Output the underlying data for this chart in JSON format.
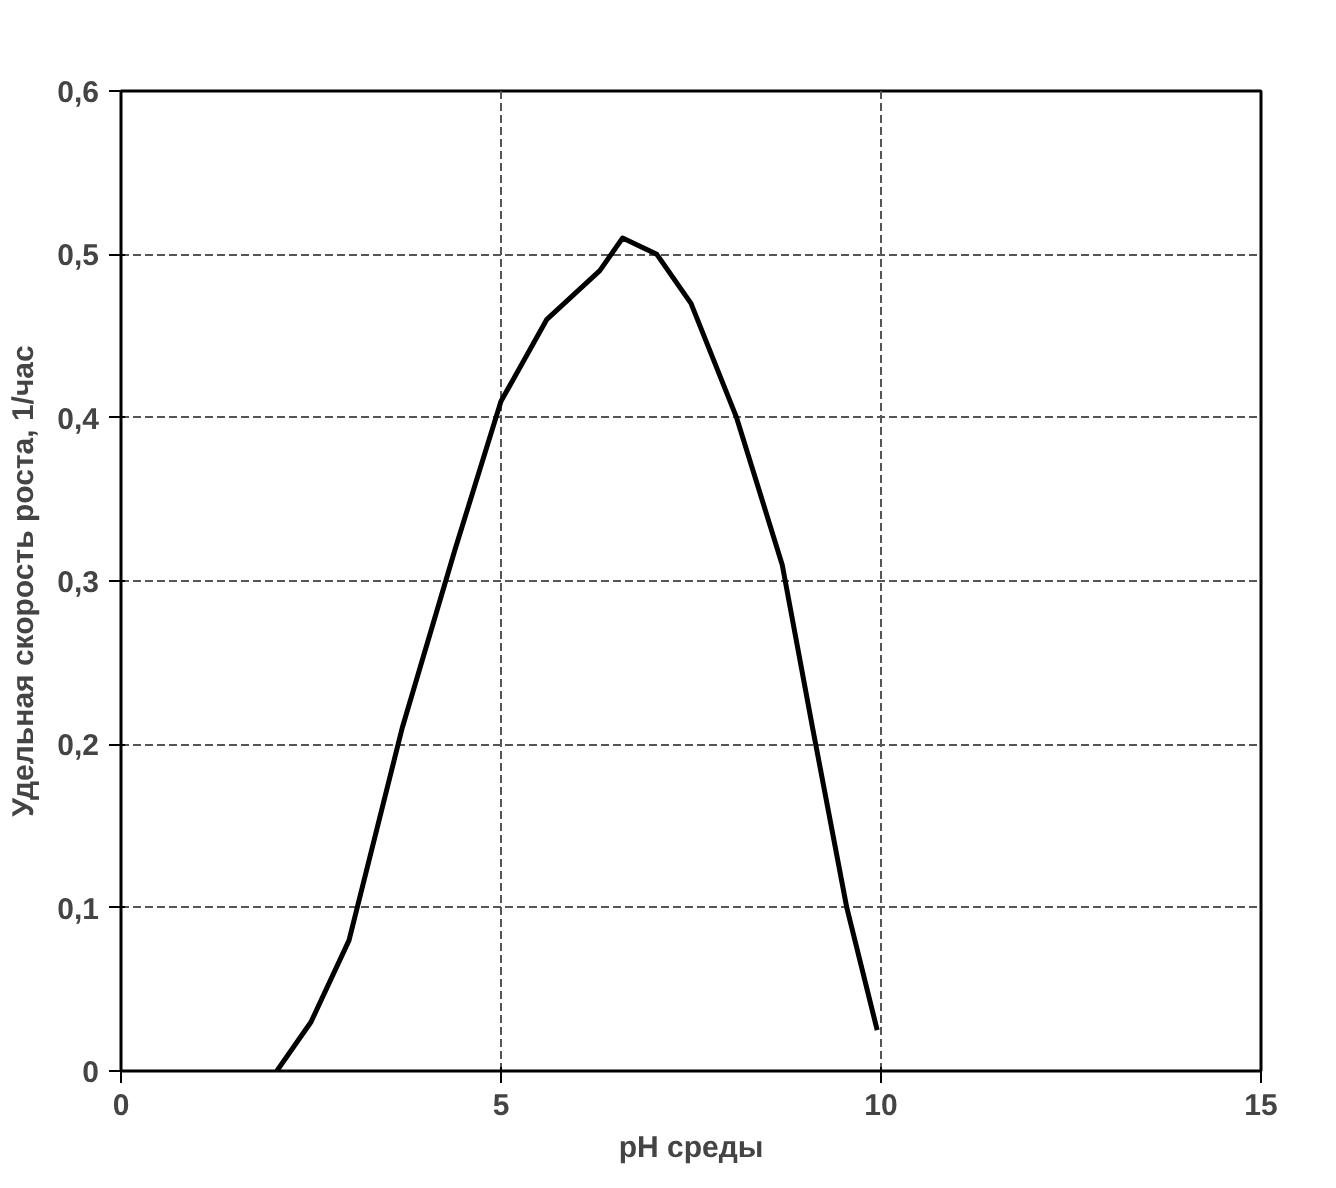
{
  "chart_data": {
    "type": "line",
    "xlabel": "pH среды",
    "ylabel": "Удельная скорость роста, 1/час",
    "x": [
      2.05,
      2.5,
      3.0,
      3.7,
      4.4,
      5.0,
      5.6,
      6.3,
      6.6,
      7.05,
      7.5,
      8.1,
      8.7,
      9.1,
      9.55,
      9.95
    ],
    "series": [
      {
        "color": "#000000",
        "values": [
          0,
          0.03,
          0.08,
          0.21,
          0.32,
          0.41,
          0.46,
          0.49,
          0.51,
          0.5,
          0.47,
          0.4,
          0.31,
          0.21,
          0.1,
          0.025
        ]
      }
    ],
    "xlim": [
      0,
      15
    ],
    "xticks": [
      0,
      5,
      10,
      15
    ],
    "ylim": [
      0,
      0.6
    ],
    "yticks": [
      0,
      {
        "value": 0.1,
        "label": "0,1"
      },
      {
        "value": 0.2,
        "label": "0,2"
      },
      {
        "value": 0.3,
        "label": "0,3"
      },
      {
        "value": 0.4,
        "label": "0,4"
      },
      {
        "value": 0.5,
        "label": "0,5"
      },
      {
        "value": 0.6,
        "label": "0,6"
      }
    ],
    "grid": true,
    "marker": "none",
    "line_style": "solid"
  }
}
